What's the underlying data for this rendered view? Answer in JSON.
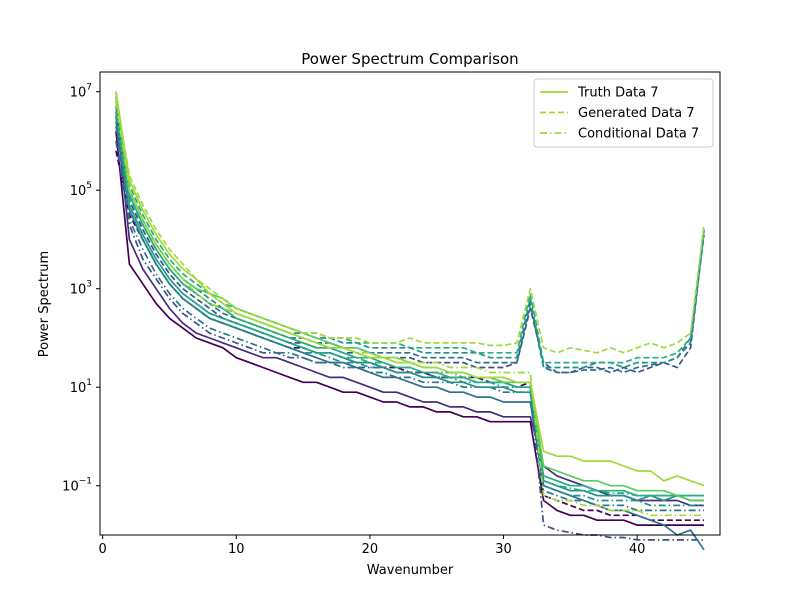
{
  "chart_data": {
    "type": "line",
    "title": "Power Spectrum Comparison",
    "xlabel": "Wavenumber",
    "ylabel": "Power Spectrum",
    "xlim": [
      -0.2,
      46.2
    ],
    "ylim_log10": [
      -2.0,
      7.4
    ],
    "yscale": "log",
    "x_ticks": [
      0,
      10,
      20,
      30,
      40
    ],
    "y_ticks": [
      {
        "exp": -1,
        "base": "10",
        "power": "−1"
      },
      {
        "exp": 1,
        "base": "10",
        "power": "1"
      },
      {
        "exp": 3,
        "base": "10",
        "power": "3"
      },
      {
        "exp": 5,
        "base": "10",
        "power": "5"
      },
      {
        "exp": 7,
        "base": "10",
        "power": "7"
      }
    ],
    "grid": false,
    "legend_position": "top-right",
    "legend": [
      {
        "label": "Truth Data 7",
        "style": "solid",
        "color": "#a0da39"
      },
      {
        "label": "Generated Data 7",
        "style": "dashed",
        "color": "#a0da39"
      },
      {
        "label": "Conditional Data 7",
        "style": "dashdot",
        "color": "#a0da39"
      }
    ],
    "x": [
      1,
      2,
      3,
      4,
      5,
      6,
      7,
      8,
      9,
      10,
      11,
      12,
      13,
      14,
      15,
      16,
      17,
      18,
      19,
      20,
      21,
      22,
      23,
      24,
      25,
      26,
      27,
      28,
      29,
      30,
      31,
      32,
      33,
      34,
      35,
      36,
      37,
      38,
      39,
      40,
      41,
      42,
      43,
      44,
      45
    ],
    "series": [
      {
        "style": "solid",
        "color": "#440154",
        "log10": [
          6.2,
          3.5,
          3.1,
          2.7,
          2.4,
          2.2,
          2.0,
          1.9,
          1.8,
          1.6,
          1.5,
          1.4,
          1.3,
          1.2,
          1.1,
          1.1,
          1.0,
          0.9,
          0.9,
          0.8,
          0.7,
          0.7,
          0.6,
          0.6,
          0.5,
          0.5,
          0.4,
          0.4,
          0.3,
          0.3,
          0.3,
          0.3,
          -1.3,
          -1.5,
          -1.6,
          -1.6,
          -1.7,
          -1.7,
          -1.7,
          -1.8,
          -1.8,
          -1.8,
          -1.8,
          -1.8,
          -1.8
        ]
      },
      {
        "style": "dashed",
        "color": "#440154",
        "log10": [
          5.8,
          4.5,
          4.0,
          3.5,
          3.1,
          2.8,
          2.6,
          2.4,
          2.3,
          2.2,
          2.1,
          2.0,
          1.9,
          1.8,
          1.8,
          1.7,
          1.7,
          1.6,
          1.5,
          1.5,
          1.4,
          1.4,
          1.3,
          1.3,
          1.2,
          1.2,
          1.2,
          1.2,
          1.1,
          1.1,
          1.0,
          1.1,
          -1.2,
          -1.3,
          -1.4,
          -1.5,
          -1.5,
          -1.6,
          -1.6,
          -1.6,
          -1.7,
          -1.7,
          -1.7,
          -1.7,
          -1.7
        ]
      },
      {
        "style": "solid",
        "color": "#472d7b",
        "log10": [
          6.6,
          4.0,
          3.4,
          3.0,
          2.6,
          2.3,
          2.1,
          2.0,
          1.9,
          1.8,
          1.7,
          1.6,
          1.6,
          1.5,
          1.4,
          1.3,
          1.2,
          1.2,
          1.1,
          1.0,
          0.9,
          0.9,
          0.8,
          0.7,
          0.7,
          0.6,
          0.6,
          0.5,
          0.5,
          0.4,
          0.4,
          0.4,
          -0.6,
          -0.8,
          -0.9,
          -1.0,
          -1.1,
          -1.2,
          -1.2,
          -1.3,
          -1.3,
          -1.3,
          -1.3,
          -1.4,
          -1.4
        ]
      },
      {
        "style": "dashed",
        "color": "#3b528b",
        "log10": [
          6.5,
          4.8,
          4.2,
          3.7,
          3.3,
          3.0,
          2.8,
          2.6,
          2.4,
          2.3,
          2.2,
          2.1,
          2.0,
          1.9,
          1.9,
          1.8,
          1.8,
          1.7,
          1.7,
          1.6,
          1.6,
          1.6,
          1.6,
          1.5,
          1.5,
          1.5,
          1.5,
          1.4,
          1.4,
          1.4,
          1.5,
          2.6,
          1.5,
          1.3,
          1.3,
          1.4,
          1.4,
          1.3,
          1.4,
          1.3,
          1.4,
          1.5,
          1.4,
          1.8,
          4.2
        ]
      },
      {
        "style": "dashdot",
        "color": "#3b528b",
        "log10": [
          6.0,
          4.3,
          3.6,
          3.2,
          2.8,
          2.5,
          2.3,
          2.1,
          2.0,
          1.9,
          1.8,
          1.7,
          1.7,
          1.6,
          1.6,
          1.5,
          1.5,
          1.5,
          1.4,
          1.4,
          1.4,
          1.3,
          1.3,
          1.3,
          1.2,
          1.2,
          1.2,
          1.1,
          1.1,
          1.1,
          1.0,
          1.0,
          -1.8,
          -1.9,
          -1.95,
          -2.0,
          -2.0,
          -2.05,
          -2.05,
          -2.1,
          -2.1,
          -2.1,
          -2.1,
          -2.1,
          -2.1
        ]
      },
      {
        "style": "solid",
        "color": "#2c728e",
        "log10": [
          6.4,
          4.6,
          4.0,
          3.5,
          3.1,
          2.8,
          2.6,
          2.4,
          2.3,
          2.2,
          2.1,
          2.0,
          1.9,
          1.8,
          1.7,
          1.6,
          1.5,
          1.5,
          1.4,
          1.3,
          1.2,
          1.2,
          1.1,
          1.0,
          1.0,
          0.9,
          0.9,
          0.8,
          0.8,
          0.7,
          0.7,
          0.7,
          -1.0,
          -1.1,
          -1.2,
          -1.3,
          -1.4,
          -1.5,
          -1.5,
          -1.6,
          -1.7,
          -1.8,
          -2.0,
          -1.9,
          -2.3
        ]
      },
      {
        "style": "dashed",
        "color": "#2c728e",
        "log10": [
          6.7,
          4.9,
          4.3,
          3.8,
          3.4,
          3.1,
          2.9,
          2.7,
          2.5,
          2.4,
          2.3,
          2.2,
          2.1,
          2.0,
          2.0,
          1.9,
          1.9,
          1.8,
          1.8,
          1.7,
          1.7,
          1.7,
          1.7,
          1.6,
          1.6,
          1.6,
          1.6,
          1.5,
          1.5,
          1.5,
          1.5,
          2.7,
          1.4,
          1.3,
          1.3,
          1.35,
          1.35,
          1.4,
          1.3,
          1.4,
          1.45,
          1.5,
          1.6,
          1.9,
          4.1
        ]
      },
      {
        "style": "dashdot",
        "color": "#2c728e",
        "log10": [
          6.3,
          4.4,
          3.8,
          3.3,
          2.9,
          2.6,
          2.4,
          2.2,
          2.1,
          2.0,
          1.9,
          1.8,
          1.7,
          1.7,
          1.6,
          1.5,
          1.5,
          1.4,
          1.4,
          1.3,
          1.3,
          1.2,
          1.2,
          1.1,
          1.1,
          1.1,
          1.0,
          1.0,
          1.0,
          0.9,
          0.9,
          0.9,
          -1.1,
          -1.2,
          -1.3,
          -1.3,
          -1.4,
          -1.4,
          -1.4,
          -1.5,
          -1.5,
          -1.5,
          -1.5,
          -1.5,
          -1.5
        ]
      },
      {
        "style": "solid",
        "color": "#21918c",
        "log10": [
          6.8,
          4.7,
          4.1,
          3.6,
          3.2,
          2.9,
          2.7,
          2.5,
          2.4,
          2.3,
          2.2,
          2.1,
          2.0,
          1.9,
          1.8,
          1.7,
          1.7,
          1.6,
          1.5,
          1.5,
          1.4,
          1.3,
          1.3,
          1.2,
          1.2,
          1.1,
          1.1,
          1.0,
          1.0,
          1.0,
          0.9,
          0.9,
          -0.9,
          -1.0,
          -1.1,
          -1.1,
          -1.2,
          -1.2,
          -1.2,
          -1.3,
          -1.2,
          -1.3,
          -1.2,
          -1.3,
          -1.3
        ]
      },
      {
        "style": "dashed",
        "color": "#21918c",
        "log10": [
          6.9,
          5.0,
          4.4,
          3.9,
          3.5,
          3.2,
          3.0,
          2.8,
          2.6,
          2.5,
          2.4,
          2.3,
          2.2,
          2.1,
          2.1,
          2.0,
          2.0,
          1.9,
          1.9,
          1.8,
          1.8,
          1.8,
          1.8,
          1.7,
          1.7,
          1.7,
          1.7,
          1.7,
          1.6,
          1.6,
          1.6,
          2.8,
          1.4,
          1.4,
          1.4,
          1.4,
          1.5,
          1.5,
          1.4,
          1.5,
          1.5,
          1.5,
          1.6,
          2.0,
          4.1
        ]
      },
      {
        "style": "dashdot",
        "color": "#21918c",
        "log10": [
          6.5,
          4.6,
          4.0,
          3.5,
          3.1,
          2.8,
          2.6,
          2.4,
          2.3,
          2.2,
          2.1,
          2.0,
          1.9,
          1.8,
          1.7,
          1.7,
          1.6,
          1.5,
          1.5,
          1.4,
          1.4,
          1.3,
          1.3,
          1.2,
          1.2,
          1.2,
          1.1,
          1.1,
          1.1,
          1.0,
          1.0,
          1.0,
          -1.0,
          -1.1,
          -1.2,
          -1.2,
          -1.3,
          -1.3,
          -1.3,
          -1.3,
          -1.4,
          -1.4,
          -1.4,
          -1.4,
          -1.4
        ]
      },
      {
        "style": "solid",
        "color": "#28ae80",
        "log10": [
          6.9,
          4.9,
          4.3,
          3.8,
          3.4,
          3.1,
          2.9,
          2.7,
          2.6,
          2.4,
          2.3,
          2.2,
          2.1,
          2.0,
          1.9,
          1.8,
          1.8,
          1.7,
          1.6,
          1.6,
          1.5,
          1.4,
          1.4,
          1.3,
          1.3,
          1.2,
          1.2,
          1.1,
          1.1,
          1.1,
          1.0,
          1.0,
          -0.8,
          -0.9,
          -1.0,
          -1.0,
          -1.1,
          -1.1,
          -1.1,
          -1.2,
          -1.2,
          -1.2,
          -1.2,
          -1.2,
          -1.2
        ]
      },
      {
        "style": "dashed",
        "color": "#28ae80",
        "log10": [
          7.0,
          5.1,
          4.5,
          4.0,
          3.6,
          3.3,
          3.1,
          2.9,
          2.7,
          2.6,
          2.5,
          2.4,
          2.3,
          2.2,
          2.1,
          2.1,
          2.0,
          2.0,
          1.9,
          1.9,
          1.9,
          1.9,
          1.8,
          1.8,
          1.8,
          1.8,
          1.8,
          1.7,
          1.7,
          1.7,
          1.7,
          2.9,
          1.5,
          1.5,
          1.5,
          1.5,
          1.5,
          1.5,
          1.5,
          1.6,
          1.6,
          1.6,
          1.7,
          2.0,
          4.2
        ]
      },
      {
        "style": "dashdot",
        "color": "#28ae80",
        "log10": [
          6.6,
          4.7,
          4.1,
          3.6,
          3.2,
          2.9,
          2.7,
          2.5,
          2.4,
          2.3,
          2.2,
          2.1,
          2.0,
          1.9,
          1.8,
          1.7,
          1.7,
          1.6,
          1.6,
          1.5,
          1.5,
          1.4,
          1.4,
          1.3,
          1.3,
          1.3,
          1.2,
          1.2,
          1.2,
          1.1,
          1.1,
          1.1,
          -0.9,
          -1.0,
          -1.05,
          -1.1,
          -1.1,
          -1.15,
          -1.15,
          -1.2,
          -1.2,
          -1.2,
          -1.2,
          -1.2,
          -1.2
        ]
      },
      {
        "style": "solid",
        "color": "#5ec962",
        "log10": [
          7.0,
          5.0,
          4.4,
          3.9,
          3.5,
          3.2,
          3.0,
          2.9,
          2.8,
          2.6,
          2.5,
          2.4,
          2.3,
          2.2,
          2.1,
          2.0,
          1.9,
          1.8,
          1.8,
          1.7,
          1.6,
          1.6,
          1.5,
          1.4,
          1.4,
          1.3,
          1.3,
          1.2,
          1.2,
          1.1,
          1.1,
          1.1,
          -0.6,
          -0.7,
          -0.8,
          -0.9,
          -0.9,
          -1.0,
          -1.0,
          -1.1,
          -1.1,
          -1.1,
          -1.2,
          -1.3,
          -1.3
        ]
      },
      {
        "style": "solid",
        "color": "#a0da39",
        "log10": [
          7.0,
          5.2,
          4.6,
          4.1,
          3.7,
          3.4,
          3.2,
          2.9,
          2.7,
          2.5,
          2.4,
          2.3,
          2.2,
          2.1,
          2.0,
          1.9,
          1.8,
          1.8,
          1.7,
          1.6,
          1.6,
          1.5,
          1.5,
          1.4,
          1.4,
          1.3,
          1.3,
          1.2,
          1.2,
          1.2,
          1.1,
          1.1,
          -0.3,
          -0.4,
          -0.4,
          -0.5,
          -0.5,
          -0.5,
          -0.6,
          -0.7,
          -0.7,
          -0.9,
          -0.8,
          -0.9,
          -1.0
        ]
      },
      {
        "style": "dashed",
        "color": "#a0da39",
        "log10": [
          6.9,
          5.3,
          4.7,
          4.2,
          3.8,
          3.5,
          3.2,
          3.0,
          2.8,
          2.6,
          2.5,
          2.4,
          2.3,
          2.2,
          2.1,
          2.1,
          2.0,
          2.0,
          2.0,
          1.9,
          1.9,
          1.9,
          2.0,
          1.9,
          1.9,
          1.9,
          1.9,
          1.9,
          1.85,
          1.85,
          1.9,
          3.0,
          1.8,
          1.7,
          1.8,
          1.75,
          1.7,
          1.8,
          1.7,
          1.8,
          1.9,
          1.8,
          1.9,
          2.1,
          4.3
        ]
      },
      {
        "style": "dashdot",
        "color": "#a0da39",
        "log10": [
          6.8,
          5.0,
          4.4,
          3.9,
          3.5,
          3.2,
          2.9,
          2.7,
          2.6,
          2.5,
          2.4,
          2.3,
          2.2,
          2.1,
          2.0,
          1.9,
          1.8,
          1.8,
          1.7,
          1.7,
          1.6,
          1.6,
          1.5,
          1.5,
          1.5,
          1.4,
          1.4,
          1.4,
          1.3,
          1.3,
          1.3,
          1.3,
          -1.2,
          -1.3,
          -1.3,
          -1.4,
          -1.4,
          -1.5,
          -1.5,
          -1.5,
          -1.6,
          -1.6,
          -1.6,
          -1.6,
          -1.6
        ]
      }
    ]
  }
}
